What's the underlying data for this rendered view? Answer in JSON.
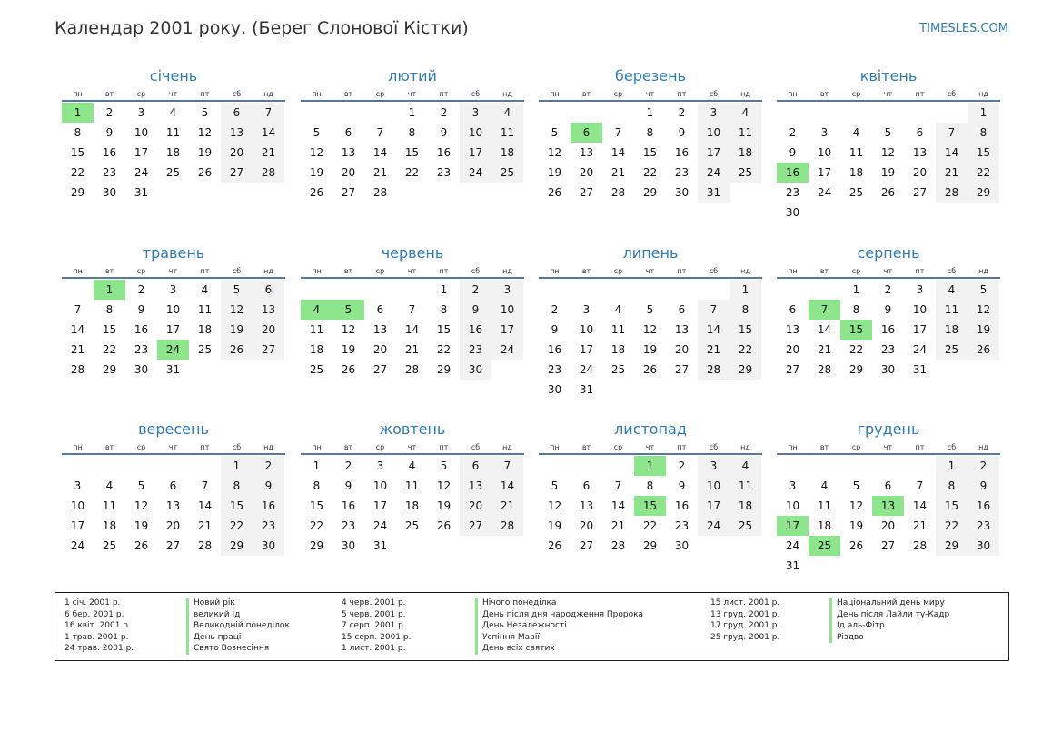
{
  "title": "Календар 2001 року. (Берег Слонової Кістки)",
  "site": "TIMESLES.COM",
  "colors": {
    "accent": "#2e7bb5",
    "holiday": "#8ee68c",
    "weekend": "#f2f2f2",
    "rule": "#56789e"
  },
  "weekdays": [
    "пн",
    "вт",
    "ср",
    "чт",
    "пт",
    "сб",
    "нд"
  ],
  "months": [
    {
      "name": "січень",
      "offset": 0,
      "days": 31,
      "holidays": [
        1
      ]
    },
    {
      "name": "лютий",
      "offset": 3,
      "days": 28,
      "holidays": []
    },
    {
      "name": "березень",
      "offset": 3,
      "days": 31,
      "holidays": [
        6
      ]
    },
    {
      "name": "квітень",
      "offset": 6,
      "days": 30,
      "holidays": [
        16
      ]
    },
    {
      "name": "травень",
      "offset": 1,
      "days": 31,
      "holidays": [
        1,
        24
      ]
    },
    {
      "name": "червень",
      "offset": 4,
      "days": 30,
      "holidays": [
        4,
        5
      ]
    },
    {
      "name": "липень",
      "offset": 6,
      "days": 31,
      "holidays": []
    },
    {
      "name": "серпень",
      "offset": 2,
      "days": 31,
      "holidays": [
        7,
        15
      ]
    },
    {
      "name": "вересень",
      "offset": 5,
      "days": 30,
      "holidays": []
    },
    {
      "name": "жовтень",
      "offset": 0,
      "days": 31,
      "holidays": []
    },
    {
      "name": "листопад",
      "offset": 3,
      "days": 30,
      "holidays": [
        1,
        15
      ]
    },
    {
      "name": "грудень",
      "offset": 5,
      "days": 31,
      "holidays": [
        13,
        17,
        25
      ]
    }
  ],
  "legend": [
    [
      {
        "date": "1 січ. 2001 р.",
        "name": "Новий рік"
      },
      {
        "date": "6 бер. 2001 р.",
        "name": "великий Ід"
      },
      {
        "date": "16 квіт. 2001 р.",
        "name": "Великодній понеділок"
      },
      {
        "date": "1 трав. 2001 р.",
        "name": "День праці"
      },
      {
        "date": "24 трав. 2001 р.",
        "name": "Свято Вознесіння"
      }
    ],
    [
      {
        "date": "4 черв. 2001 р.",
        "name": "Нічого понеділка"
      },
      {
        "date": "5 черв. 2001 р.",
        "name": "День після дня народження Пророка"
      },
      {
        "date": "7 серп. 2001 р.",
        "name": "День Незалежності"
      },
      {
        "date": "15 серп. 2001 р.",
        "name": "Успіння Марії"
      },
      {
        "date": "1 лист. 2001 р.",
        "name": "День всіх святих"
      }
    ],
    [
      {
        "date": "15 лист. 2001 р.",
        "name": "Національний день миру"
      },
      {
        "date": "13 груд. 2001 р.",
        "name": "День після Лайли ту-Кадр"
      },
      {
        "date": "17 груд. 2001 р.",
        "name": "Ід аль-Фітр"
      },
      {
        "date": "25 груд. 2001 р.",
        "name": "Різдво"
      }
    ]
  ]
}
